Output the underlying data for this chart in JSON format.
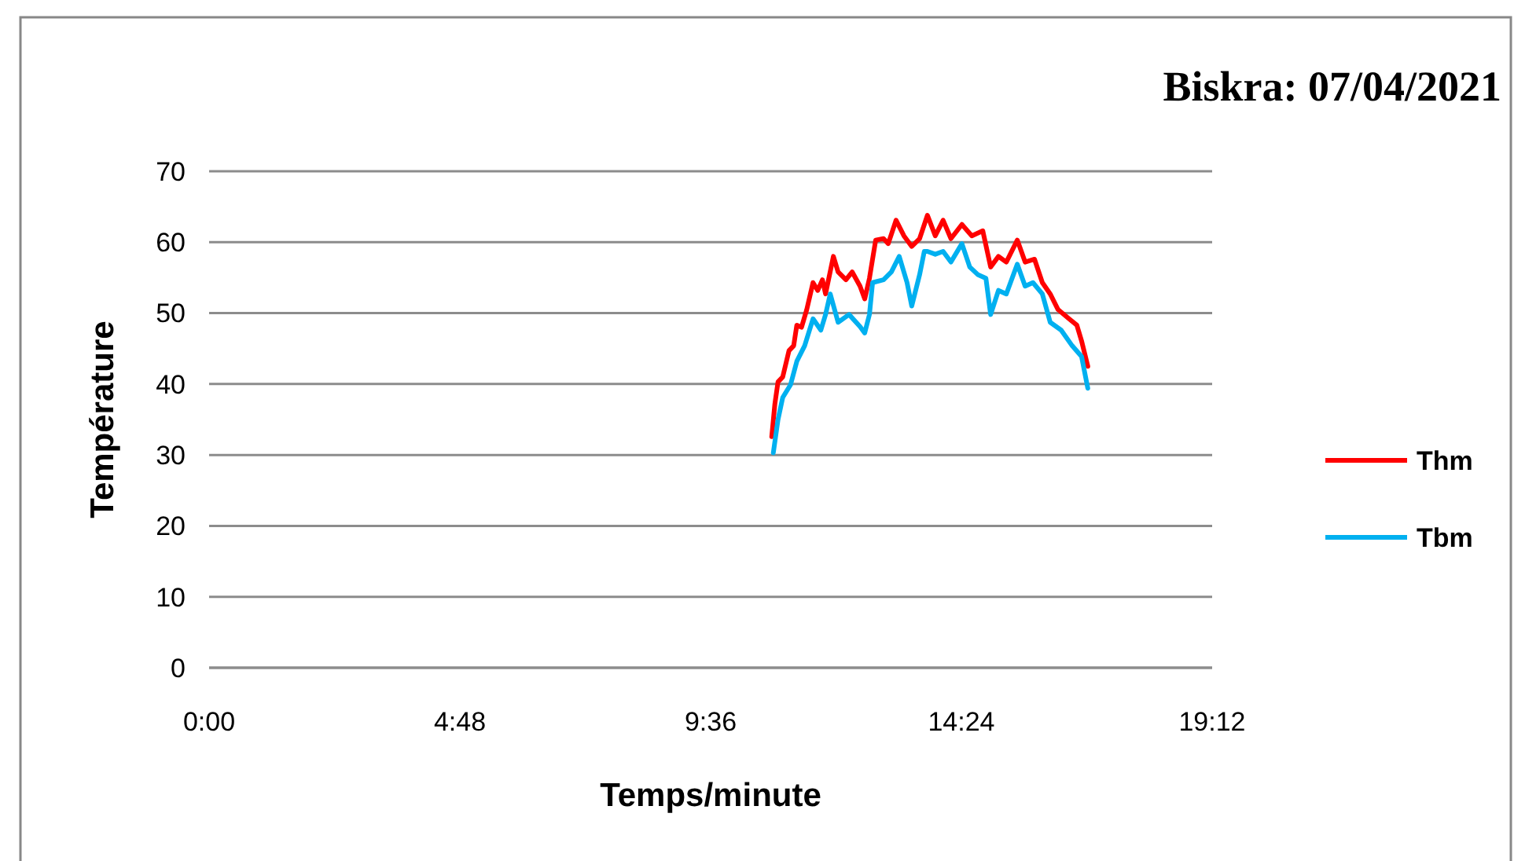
{
  "chart_data": {
    "type": "line",
    "title": "Biskra: 07/04/2021",
    "xlabel": "Temps/minute",
    "ylabel": "Température",
    "xlim": [
      0,
      19.2
    ],
    "xticks": [
      {
        "value": 0,
        "label": "0:00"
      },
      {
        "value": 4.8,
        "label": "4:48"
      },
      {
        "value": 9.6,
        "label": "9:36"
      },
      {
        "value": 14.4,
        "label": "14:24"
      },
      {
        "value": 19.2,
        "label": "19:12"
      }
    ],
    "ylim": [
      0,
      70
    ],
    "yticks": [
      0,
      10,
      20,
      30,
      40,
      50,
      60,
      70
    ],
    "grid": "y",
    "legend": "right",
    "marker": "none",
    "line_style": "solid",
    "series": [
      {
        "name": "Thm",
        "color": "#ff0000",
        "x": [
          10.77,
          10.83,
          10.89,
          10.98,
          11.1,
          11.19,
          11.25,
          11.34,
          11.44,
          11.56,
          11.65,
          11.74,
          11.8,
          11.95,
          12.04,
          12.19,
          12.31,
          12.46,
          12.55,
          12.64,
          12.76,
          12.91,
          13.0,
          13.15,
          13.3,
          13.45,
          13.6,
          13.75,
          13.9,
          14.05,
          14.2,
          14.41,
          14.6,
          14.81,
          14.96,
          15.11,
          15.26,
          15.47,
          15.62,
          15.8,
          15.95,
          16.1,
          16.25,
          16.46,
          16.61,
          16.7,
          16.82
        ],
        "values": [
          32.6,
          37.2,
          40.3,
          41,
          44.7,
          45.4,
          48.3,
          48,
          50.5,
          54.3,
          53.2,
          54.7,
          52.7,
          58,
          55.8,
          54.7,
          55.8,
          53.8,
          52,
          54.9,
          60.3,
          60.5,
          59.8,
          63.1,
          60.9,
          59.4,
          60.5,
          63.8,
          60.9,
          63.1,
          60.5,
          62.5,
          60.9,
          61.6,
          56.5,
          58,
          57.2,
          60.3,
          57.2,
          57.6,
          54.3,
          52.7,
          50.5,
          49.2,
          48.3,
          46.1,
          42.5
        ]
      },
      {
        "name": "Tbm",
        "color": "#00b0f0",
        "x": [
          10.8,
          10.89,
          10.98,
          11.13,
          11.25,
          11.4,
          11.56,
          11.71,
          11.8,
          11.89,
          12.04,
          12.25,
          12.46,
          12.55,
          12.64,
          12.7,
          12.91,
          13.06,
          13.21,
          13.36,
          13.45,
          13.6,
          13.69,
          13.75,
          13.9,
          14.05,
          14.2,
          14.41,
          14.56,
          14.72,
          14.87,
          14.96,
          15.11,
          15.26,
          15.47,
          15.62,
          15.77,
          15.95,
          16.1,
          16.31,
          16.52,
          16.7,
          16.82
        ],
        "values": [
          30.3,
          35,
          38.1,
          39.9,
          43.2,
          45.4,
          49.2,
          47.6,
          49.8,
          52.7,
          48.7,
          49.8,
          48.1,
          47.2,
          49.8,
          54.3,
          54.7,
          55.8,
          58,
          54.3,
          51,
          55.4,
          58.7,
          58.7,
          58.3,
          58.7,
          57.2,
          59.8,
          56.5,
          55.4,
          54.9,
          49.8,
          53.2,
          52.7,
          56.9,
          53.8,
          54.3,
          52.7,
          48.7,
          47.6,
          45.4,
          43.9,
          39.4
        ]
      }
    ]
  }
}
